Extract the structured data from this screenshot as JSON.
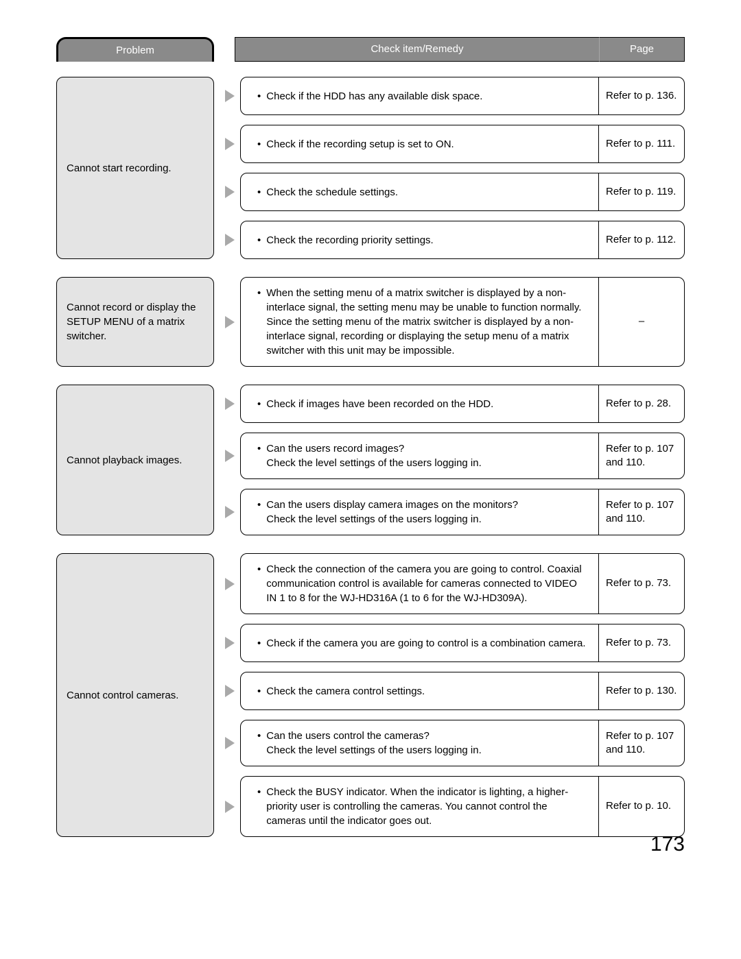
{
  "headers": {
    "problem": "Problem",
    "remedy": "Check item/Remedy",
    "page": "Page"
  },
  "colors": {
    "header_bg": "#8a8a8a",
    "header_text": "#ffffff",
    "problem_bg": "#e4e4e4",
    "border": "#000000",
    "body_text": "#000000",
    "arrow_fill": "#a9a9a9",
    "page_bg": "#ffffff"
  },
  "groups": [
    {
      "problem": "Cannot start recording.",
      "remedies": [
        {
          "text": "Check if the HDD has any available disk space.",
          "page": "Refer to p. 136."
        },
        {
          "text": "Check if the recording setup is set to ON.",
          "page": "Refer to p. 111."
        },
        {
          "text": "Check the schedule settings.",
          "page": "Refer to p. 119."
        },
        {
          "text": "Check the recording priority settings.",
          "page": "Refer to p. 112."
        }
      ]
    },
    {
      "problem": "Cannot record or display the SETUP MENU of a matrix switcher.",
      "remedies": [
        {
          "text": "When the setting menu of a matrix switcher is displayed by a non-interlace signal, the setting menu may be unable to function normally.\nSince the setting menu of the matrix switcher is displayed by a non-interlace signal, recording or displaying the setup menu of a matrix switcher with this unit may be impossible.",
          "page": "–",
          "page_center": true
        }
      ]
    },
    {
      "problem": "Cannot playback images.",
      "remedies": [
        {
          "text": "Check if images have been recorded on the HDD.",
          "page": "Refer to p. 28."
        },
        {
          "text": "Can the users record images?\nCheck the level settings of the users logging in.",
          "page": "Refer to p. 107 and 110."
        },
        {
          "text": "Can the users display camera images on the monitors?\nCheck the level settings of the users logging in.",
          "page": "Refer to p. 107 and 110."
        }
      ]
    },
    {
      "problem": "Cannot control cameras.",
      "remedies": [
        {
          "text": "Check the connection of the camera you are going to control. Coaxial communication control is available for cameras connected to VIDEO IN 1 to 8 for the WJ-HD316A (1 to 6 for the WJ-HD309A).",
          "page": "Refer to p. 73."
        },
        {
          "text": "Check if the camera you are going to control is a combination camera.",
          "page": "Refer to p. 73."
        },
        {
          "text": "Check the camera control settings.",
          "page": "Refer to p. 130."
        },
        {
          "text": "Can the users control the cameras?\nCheck the level settings of the users logging in.",
          "page": "Refer to p. 107 and 110."
        },
        {
          "text": "Check the BUSY indicator. When the indicator is lighting, a higher-priority user is controlling the cameras. You cannot control the cameras until the indicator goes out.",
          "page": "Refer to p. 10."
        }
      ]
    }
  ],
  "page_number": "173"
}
